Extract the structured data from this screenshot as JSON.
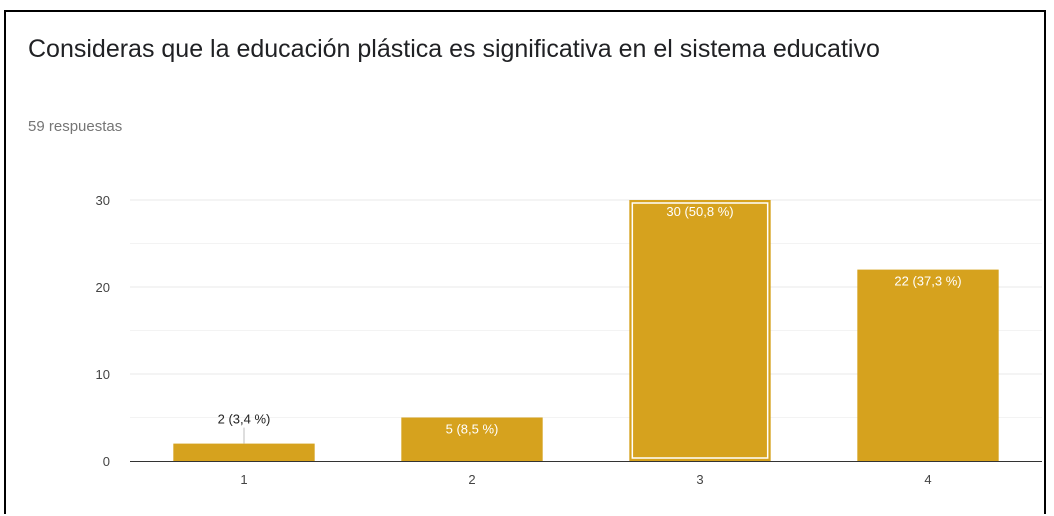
{
  "question": {
    "title": "Consideras que la educación plástica es significativa en el sistema educativo",
    "responses": "59 respuestas"
  },
  "colors": {
    "bar": "#d6a21e",
    "bar_label_inside": "#ffffff",
    "bar_label_outside": "#222222"
  },
  "chart_data": {
    "type": "bar",
    "categories": [
      "1",
      "2",
      "3",
      "4"
    ],
    "values": [
      2,
      5,
      30,
      22
    ],
    "data_labels": [
      "2 (3,4 %)",
      "5 (8,5 %)",
      "30 (50,8 %)",
      "22 (37,3 %)"
    ],
    "highlighted_index": 2,
    "title": "Consideras que la educación plástica es significativa en el sistema educativo",
    "subtitle": "59 respuestas",
    "xlabel": "",
    "ylabel": "",
    "ylim": [
      0,
      30
    ],
    "yticks": [
      0,
      10,
      20,
      30
    ],
    "grid": true,
    "legend": "none"
  }
}
